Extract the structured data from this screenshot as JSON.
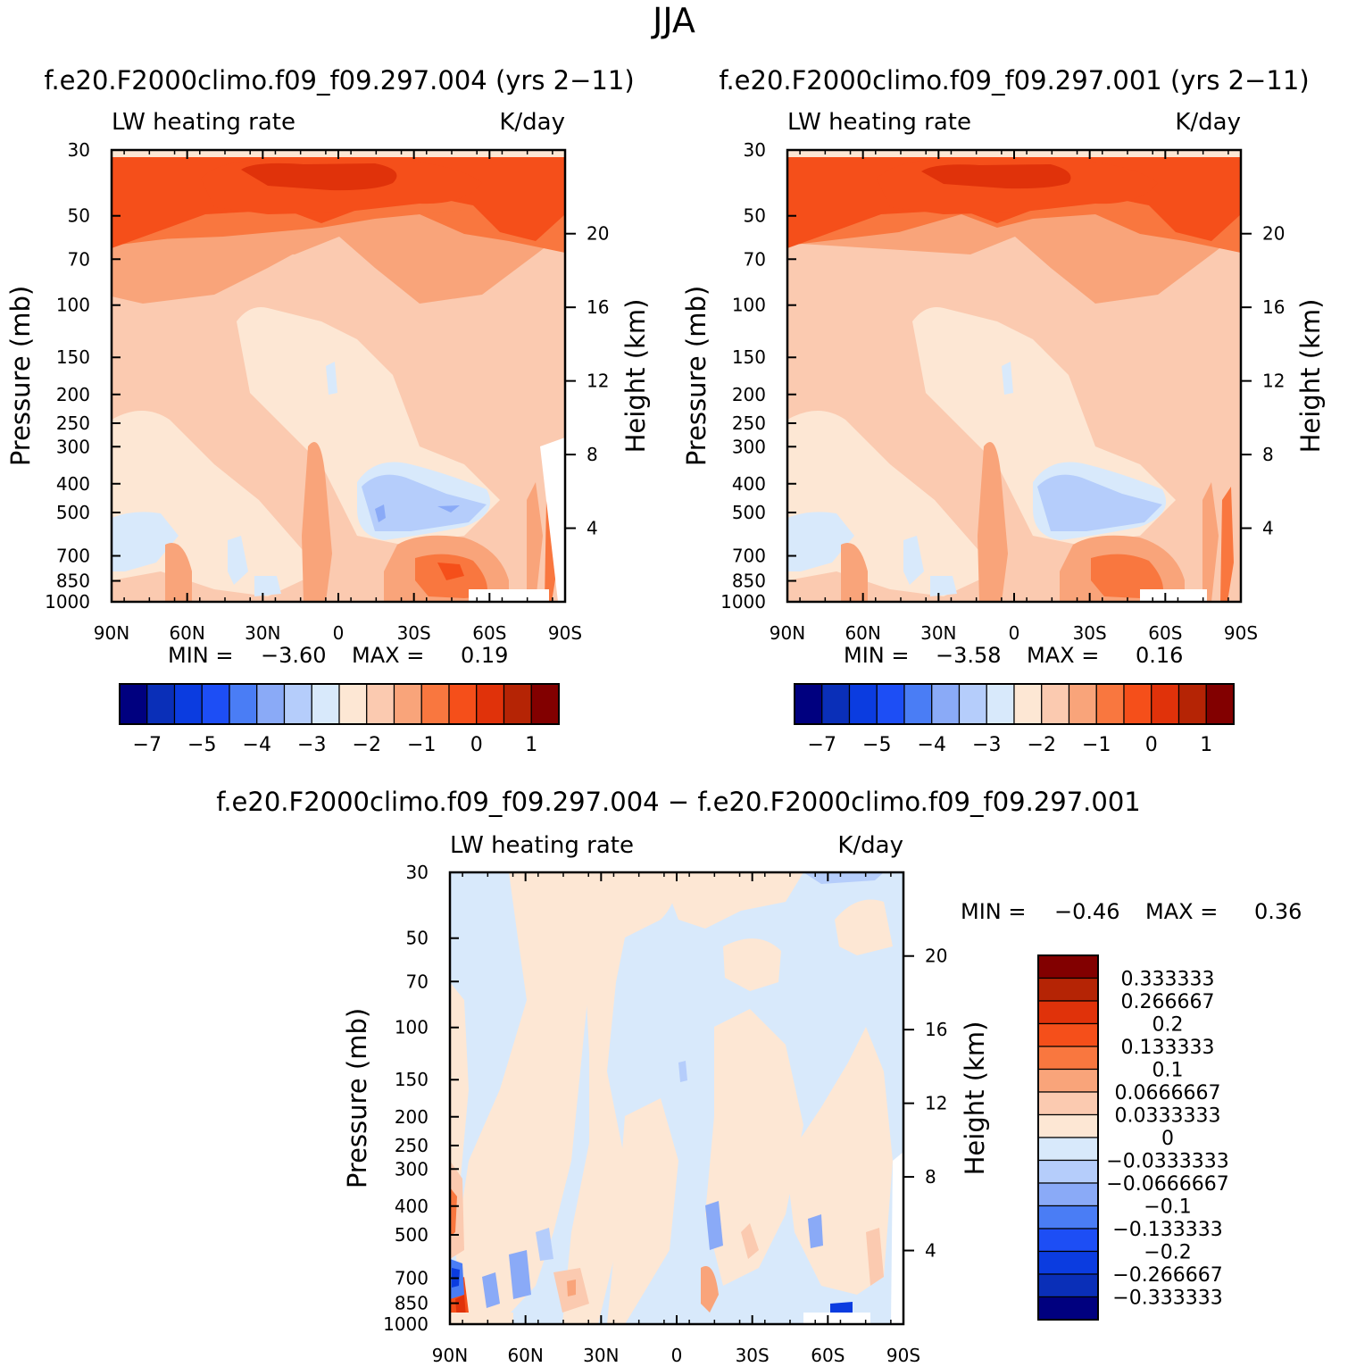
{
  "page_title": "JJA",
  "colors": {
    "abs_palette": [
      "#00007f",
      "#0a2fb8",
      "#0b3ce0",
      "#1d4ef5",
      "#4a7df5",
      "#8aaaf7",
      "#b5cdfb",
      "#d8e9fb",
      "#fde7d4",
      "#fbcab0",
      "#f9a47a",
      "#f9773f",
      "#f54f1a",
      "#e0320a",
      "#b52405",
      "#820000"
    ],
    "diff_palette": [
      "#00007f",
      "#0a2fb8",
      "#0b3ce0",
      "#1d4ef5",
      "#4a7df5",
      "#8aaaf7",
      "#b5cdfb",
      "#d8e9fb",
      "#fde7d4",
      "#fbcab0",
      "#f9a47a",
      "#f9773f",
      "#f54f1a",
      "#e0320a",
      "#b52405",
      "#820000"
    ]
  },
  "chart_data": [
    {
      "type": "heatmap",
      "panel": "left",
      "case_title": "f.e20.F2000climo.f09_f09.297.004 (yrs 2−11)",
      "variable": "LW heating rate",
      "units": "K/day",
      "ylabel": "Pressure (mb)",
      "ylabel_right": "Height (km)",
      "x_ticks": [
        "90N",
        "60N",
        "30N",
        "0",
        "30S",
        "60S",
        "90S"
      ],
      "y_ticks": [
        "30",
        "50",
        "70",
        "100",
        "150",
        "200",
        "250",
        "300",
        "400",
        "500",
        "700",
        "850",
        "1000"
      ],
      "y_ticks_right": [
        "20",
        "16",
        "12",
        "8",
        "4"
      ],
      "ylim": [
        1000,
        30
      ],
      "min_label": "MIN =",
      "min_value": "−3.60",
      "max_label": "MAX =",
      "max_value": "0.19",
      "colorbar_labels": [
        "−7",
        "−5",
        "−4",
        "−3",
        "−2",
        "−1",
        "0",
        "1"
      ]
    },
    {
      "type": "heatmap",
      "panel": "right",
      "case_title": "f.e20.F2000climo.f09_f09.297.001 (yrs 2−11)",
      "variable": "LW heating rate",
      "units": "K/day",
      "ylabel": "Pressure (mb)",
      "ylabel_right": "Height (km)",
      "x_ticks": [
        "90N",
        "60N",
        "30N",
        "0",
        "30S",
        "60S",
        "90S"
      ],
      "y_ticks": [
        "30",
        "50",
        "70",
        "100",
        "150",
        "200",
        "250",
        "300",
        "400",
        "500",
        "700",
        "850",
        "1000"
      ],
      "y_ticks_right": [
        "20",
        "16",
        "12",
        "8",
        "4"
      ],
      "ylim": [
        1000,
        30
      ],
      "min_label": "MIN =",
      "min_value": "−3.58",
      "max_label": "MAX =",
      "max_value": "0.16",
      "colorbar_labels": [
        "−7",
        "−5",
        "−4",
        "−3",
        "−2",
        "−1",
        "0",
        "1"
      ]
    },
    {
      "type": "heatmap",
      "panel": "difference",
      "case_title": "f.e20.F2000climo.f09_f09.297.004 − f.e20.F2000climo.f09_f09.297.001",
      "variable": "LW heating rate",
      "units": "K/day",
      "ylabel": "Pressure (mb)",
      "ylabel_right": "Height (km)",
      "x_ticks": [
        "90N",
        "60N",
        "30N",
        "0",
        "30S",
        "60S",
        "90S"
      ],
      "y_ticks": [
        "30",
        "50",
        "70",
        "100",
        "150",
        "200",
        "250",
        "300",
        "400",
        "500",
        "700",
        "850",
        "1000"
      ],
      "y_ticks_right": [
        "20",
        "16",
        "12",
        "8",
        "4"
      ],
      "ylim": [
        1000,
        30
      ],
      "min_label": "MIN =",
      "min_value": "−0.46",
      "max_label": "MAX =",
      "max_value": "0.36",
      "colorbar_labels": [
        "0.333333",
        "0.266667",
        "0.2",
        "0.133333",
        "0.1",
        "0.0666667",
        "0.0333333",
        "0",
        "−0.0333333",
        "−0.0666667",
        "−0.1",
        "−0.133333",
        "−0.2",
        "−0.266667",
        "−0.333333"
      ]
    }
  ]
}
